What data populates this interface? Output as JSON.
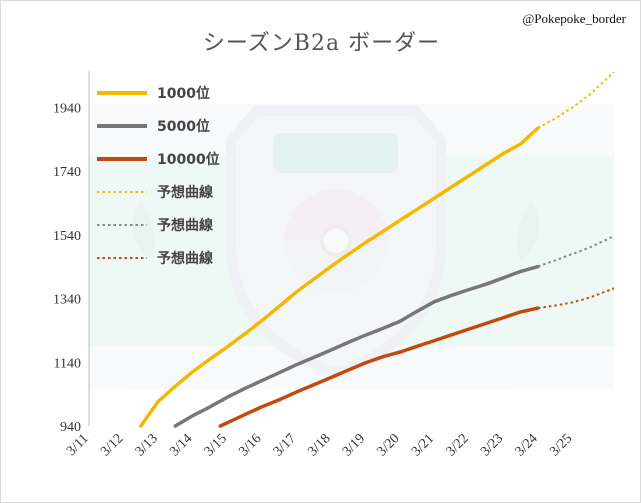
{
  "credit": "@Pokepoke_border",
  "chart_data": {
    "type": "line",
    "title": "シーズンB2a ボーダー",
    "xlabel": "",
    "ylabel": "",
    "ylim": [
      940,
      2060
    ],
    "yticks": [
      940,
      1140,
      1340,
      1540,
      1740,
      1940
    ],
    "xticks": [
      "3/11",
      "3/12",
      "3/13",
      "3/14",
      "3/15",
      "3/16",
      "3/17",
      "3/18",
      "3/19",
      "3/20",
      "3/21",
      "3/22",
      "3/23",
      "3/24",
      "3/25"
    ],
    "xlim": [
      11,
      26.2
    ],
    "grid": false,
    "legend_position": "top-left",
    "series": [
      {
        "name": "1000位",
        "style": "solid",
        "color": "#f5b800",
        "x": [
          12.5,
          13,
          13.5,
          14,
          14.5,
          15,
          15.5,
          16,
          16.5,
          17,
          17.5,
          18,
          18.5,
          19,
          19.5,
          20,
          20.5,
          21,
          21.5,
          22,
          22.5,
          23,
          23.5,
          24
        ],
        "y": [
          940,
          1017,
          1065,
          1110,
          1150,
          1188,
          1228,
          1270,
          1315,
          1360,
          1400,
          1440,
          1478,
          1515,
          1550,
          1585,
          1620,
          1655,
          1690,
          1725,
          1760,
          1795,
          1825,
          1875
        ]
      },
      {
        "name": "5000位",
        "style": "solid",
        "color": "#777777",
        "x": [
          13.5,
          14,
          14.5,
          15,
          15.5,
          16,
          16.5,
          17,
          17.5,
          18,
          18.5,
          19,
          19.5,
          20,
          20.5,
          21,
          21.5,
          22,
          22.5,
          23,
          23.5,
          24
        ],
        "y": [
          940,
          972,
          1000,
          1030,
          1057,
          1082,
          1107,
          1132,
          1155,
          1178,
          1202,
          1225,
          1246,
          1268,
          1300,
          1330,
          1350,
          1368,
          1385,
          1405,
          1425,
          1440
        ]
      },
      {
        "name": "10000位",
        "style": "solid",
        "color": "#c04a10",
        "x": [
          14.8,
          15,
          15.5,
          16,
          16.5,
          17,
          17.5,
          18,
          18.5,
          19,
          19.5,
          20,
          20.5,
          21,
          21.5,
          22,
          22.5,
          23,
          23.5,
          24
        ],
        "y": [
          940,
          950,
          975,
          1000,
          1022,
          1046,
          1069,
          1092,
          1115,
          1138,
          1157,
          1172,
          1190,
          1208,
          1226,
          1244,
          1262,
          1280,
          1298,
          1310
        ]
      },
      {
        "name": "予想曲線",
        "style": "dotted",
        "color": "#f5b800",
        "x": [
          24,
          24.5,
          25,
          25.5,
          26.2
        ],
        "y": [
          1875,
          1905,
          1940,
          1980,
          2050
        ]
      },
      {
        "name": "予想曲線",
        "style": "dotted",
        "color": "#888888",
        "x": [
          24,
          24.5,
          25,
          25.5,
          26.2
        ],
        "y": [
          1440,
          1460,
          1480,
          1500,
          1536
        ]
      },
      {
        "name": "予想曲線",
        "style": "dotted",
        "color": "#c04a10",
        "x": [
          24,
          24.5,
          25,
          25.5,
          26.2
        ],
        "y": [
          1310,
          1318,
          1328,
          1343,
          1372
        ]
      }
    ]
  }
}
